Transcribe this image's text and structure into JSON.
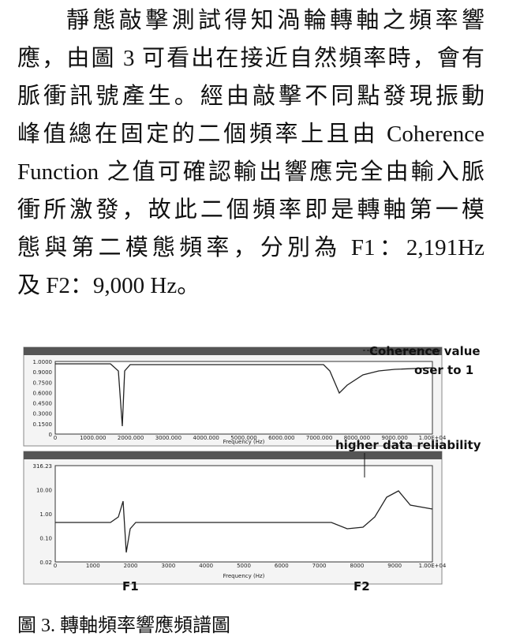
{
  "paragraph": {
    "lines": [
      "靜態敲擊測試得知渦輪轉軸之頻率響",
      "應，由圖 3 可看出在接近自然頻率時，會有",
      "脈衝訊號產生。經由敲擊不同點發現振動",
      "峰值總在固定的二個頻率上且由 Coherence",
      "Function 之值可確認輸出響應完全由輸入脈",
      "衝所激發，故此二個頻率即是轉軸第一模",
      "態與第二模態頻率，分別為  F1：2,191Hz",
      "及 F2：9,000 Hz。"
    ]
  },
  "figure": {
    "annotations": {
      "coherence": "Coherence value",
      "closer": "oser to 1",
      "reliability": "higher data reliability",
      "f1": "F1",
      "f2": "F2"
    },
    "top_panel": {
      "x_label": "Frequency (Hz)",
      "x_ticks": [
        "0",
        "1000.000",
        "2000.000",
        "3000.000",
        "4000.000",
        "5000.000",
        "6000.000",
        "7000.000",
        "8000.000",
        "9000.000",
        "1.00E+04"
      ],
      "y_ticks": [
        "1.0000",
        "0.9000",
        "0.7500",
        "0.6000",
        "0.4500",
        "0.3000",
        "0.1500",
        "0"
      ]
    },
    "bottom_panel": {
      "x_label": "Frequency (Hz)",
      "x_ticks": [
        "0",
        "1000",
        "2000",
        "3000",
        "4000",
        "5000",
        "6000",
        "7000",
        "8000",
        "9000",
        "1.00E+04"
      ],
      "y_ticks": [
        "316.23",
        "10.00",
        "1.00",
        "0.10",
        "0.02"
      ]
    }
  },
  "caption": "圖 3. 轉軸頻率響應頻譜圖"
}
